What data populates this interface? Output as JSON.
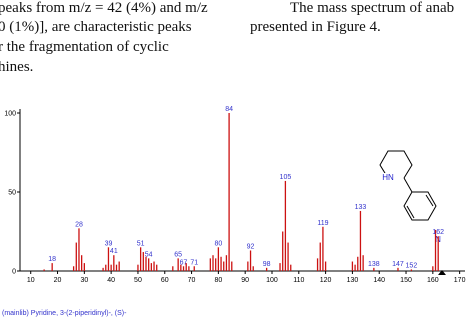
{
  "text": {
    "left_lines": [
      "peaks from m/z = 42 (4%) and m/z",
      "0 (1%)], are characteristic peaks",
      "r the fragmentation of cyclic",
      "hines."
    ],
    "right_lines": [
      "The mass spectrum of anab",
      "presented in Figure 4."
    ]
  },
  "chart_data": {
    "type": "bar",
    "color": "#cc1111",
    "label_color": "#3333cc",
    "x": [
      15,
      18,
      26,
      27,
      28,
      29,
      30,
      37,
      38,
      39,
      40,
      41,
      42,
      43,
      50,
      51,
      52,
      53,
      54,
      55,
      56,
      57,
      63,
      65,
      66,
      67,
      68,
      69,
      71,
      77,
      78,
      79,
      80,
      81,
      82,
      83,
      84,
      85,
      91,
      92,
      93,
      98,
      103,
      104,
      105,
      106,
      107,
      117,
      118,
      119,
      120,
      130,
      131,
      132,
      133,
      134,
      138,
      147,
      152,
      160,
      161,
      162
    ],
    "values": [
      1,
      5,
      3,
      18,
      27,
      10,
      5,
      2,
      4,
      15,
      4,
      10,
      4,
      6,
      4,
      15,
      12,
      9,
      8,
      5,
      6,
      4,
      3,
      8,
      4,
      3,
      5,
      3,
      3,
      8,
      10,
      8,
      15,
      9,
      6,
      10,
      100,
      6,
      6,
      13,
      3,
      2,
      5,
      25,
      57,
      18,
      4,
      8,
      18,
      28,
      6,
      6,
      4,
      9,
      38,
      10,
      2,
      2,
      1,
      3,
      26,
      22
    ],
    "peak_labels": [
      18,
      28,
      39,
      41,
      51,
      54,
      65,
      67,
      71,
      80,
      84,
      92,
      98,
      105,
      119,
      133,
      138,
      147,
      152,
      162
    ],
    "xlim": [
      6,
      172
    ],
    "ylim": [
      0,
      100
    ],
    "yticks": [
      0,
      50,
      100
    ],
    "xticks": [
      10,
      20,
      30,
      40,
      50,
      60,
      70,
      80,
      90,
      100,
      110,
      120,
      130,
      140,
      150,
      160,
      170
    ],
    "caption": "(mainlib) Pyridine, 3-(2-piperidinyl)-, (S)-"
  },
  "structure": {
    "atoms": [
      "HN",
      "N"
    ]
  }
}
